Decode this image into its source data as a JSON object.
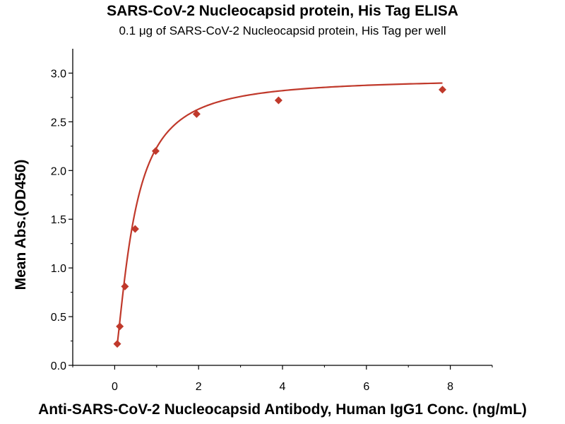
{
  "chart_data": {
    "type": "scatter",
    "title": "SARS-CoV-2 Nucleocapsid protein, His Tag ELISA",
    "subtitle": "0.1 μg of SARS-CoV-2 Nucleocapsid protein, His Tag per well",
    "xlabel": "Anti-SARS-CoV-2 Nucleocapsid Antibody, Human IgG1 Conc. (ng/mL)",
    "ylabel": "Mean Abs.(OD450)",
    "xlim": [
      -1,
      9
    ],
    "ylim": [
      0,
      3.25
    ],
    "x_ticks": [
      "0",
      "2",
      "4",
      "6",
      "8"
    ],
    "y_ticks": [
      "0.0",
      "0.5",
      "1.0",
      "1.5",
      "2.0",
      "2.5",
      "3.0"
    ],
    "grid": false,
    "series": [
      {
        "x": [
          0.061,
          0.122,
          0.244,
          0.488,
          0.977,
          1.953,
          3.906,
          7.813
        ],
        "values": [
          0.22,
          0.4,
          0.81,
          1.4,
          2.2,
          2.58,
          2.72,
          2.83
        ],
        "marker": "diamond",
        "fit": "4PL curve",
        "color": "#c0392b"
      }
    ]
  }
}
